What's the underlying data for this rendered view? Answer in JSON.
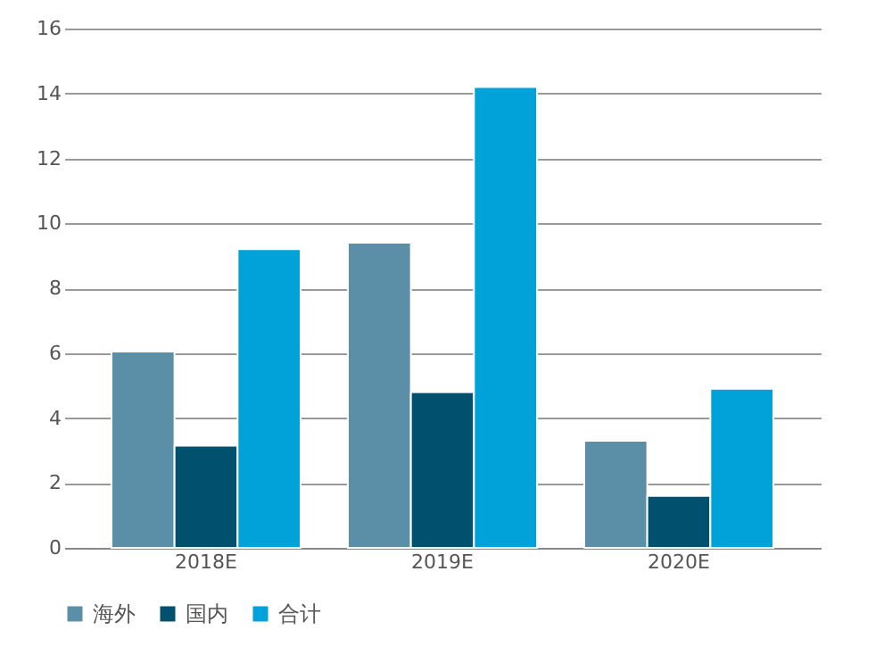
{
  "chart_data": {
    "type": "bar",
    "categories": [
      "2018E",
      "2019E",
      "2020E"
    ],
    "series": [
      {
        "name": "海外",
        "color": "#5b8fa8",
        "values": [
          6.05,
          9.4,
          3.3
        ]
      },
      {
        "name": "国内",
        "color": "#00506e",
        "values": [
          3.15,
          4.8,
          1.6
        ]
      },
      {
        "name": "合计",
        "color": "#00a2d9",
        "values": [
          9.2,
          14.2,
          4.9
        ]
      }
    ],
    "ylim": [
      0,
      16
    ],
    "yticks": [
      0,
      2,
      4,
      6,
      8,
      10,
      12,
      14,
      16
    ],
    "grid": "y",
    "legend": "bottom"
  }
}
